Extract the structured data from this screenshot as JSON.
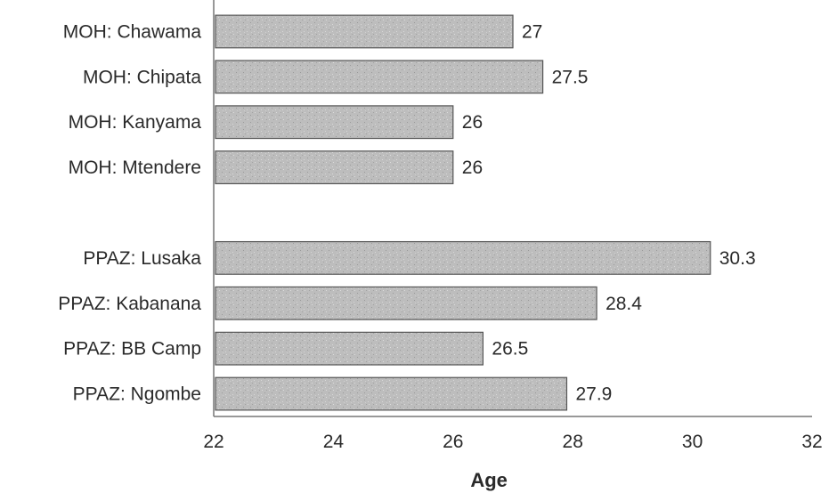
{
  "chart_data": {
    "type": "bar",
    "orientation": "horizontal",
    "categories": [
      "MOH: Chawama",
      "MOH: Chipata",
      "MOH: Kanyama",
      "MOH: Mtendere",
      "",
      "PPAZ: Lusaka",
      "PPAZ: Kabanana",
      "PPAZ: BB Camp",
      "PPAZ: Ngombe"
    ],
    "values": [
      27,
      27.5,
      26,
      26,
      null,
      30.3,
      28.4,
      26.5,
      27.9
    ],
    "value_labels": [
      "27",
      "27.5",
      "26",
      "26",
      "",
      "30.3",
      "28.4",
      "26.5",
      "27.9"
    ],
    "xlabel": "Age",
    "ylabel": "",
    "title": "",
    "xlim": [
      22,
      32
    ],
    "xticks": [
      22,
      24,
      26,
      28,
      30,
      32
    ],
    "xtick_labels": [
      "22",
      "24",
      "26",
      "28",
      "30",
      "32"
    ],
    "grid": false,
    "bar_color": "#b9b9b9",
    "bar_edge_color": "#555555",
    "highlight_label_color": "#000000"
  }
}
